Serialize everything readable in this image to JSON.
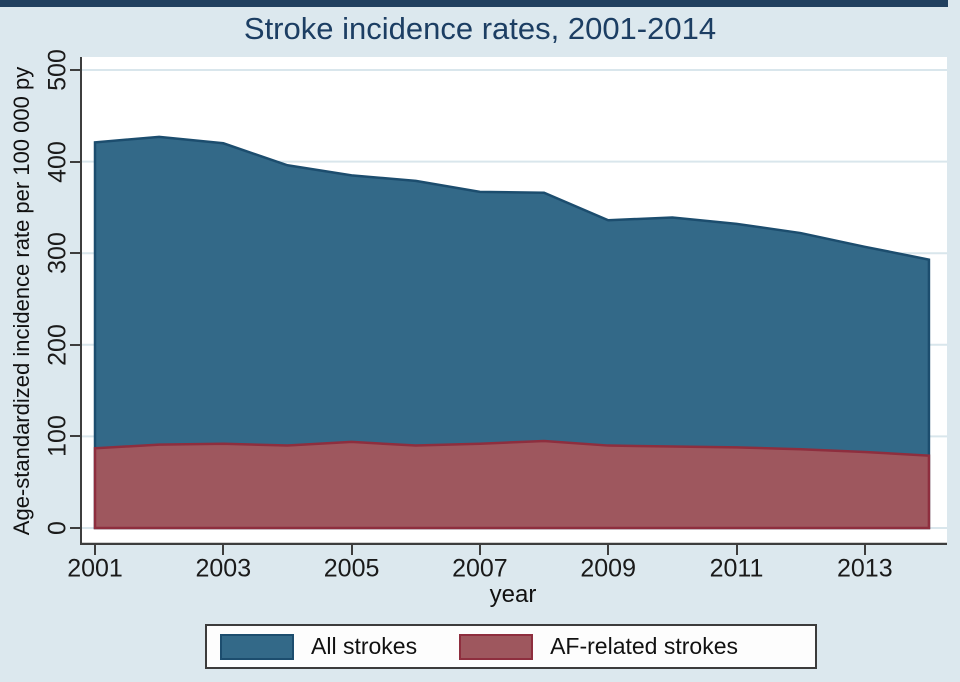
{
  "title": "Stroke incidence rates, 2001-2014",
  "y_axis": {
    "label": "Age-standardized incidence rate per 100 000 py",
    "ticks": [
      0,
      100,
      200,
      300,
      400,
      500
    ]
  },
  "x_axis": {
    "label": "year",
    "ticks": [
      2001,
      2003,
      2005,
      2007,
      2009,
      2011,
      2013
    ]
  },
  "legend": {
    "items": [
      {
        "label": "All strokes",
        "fill": "#336988",
        "edge": "#1c4d6e"
      },
      {
        "label": "AF-related strokes",
        "fill": "#9e575e",
        "edge": "#8e2e3e"
      }
    ]
  },
  "colors": {
    "background": "#dce8ee",
    "plot_background": "#ffffff",
    "top_bar": "#21405f",
    "title": "#1c3e63",
    "gridline": "#d9e6ec",
    "axis_line": "#3d3d3d",
    "tick_text": "#1a1a1a"
  },
  "chart_data": {
    "type": "area",
    "mode": "overlay",
    "title": "Stroke incidence rates, 2001-2014",
    "xlabel": "year",
    "ylabel": "Age-standardized incidence rate per 100 000 py",
    "x": [
      2001,
      2002,
      2003,
      2004,
      2005,
      2006,
      2007,
      2008,
      2009,
      2010,
      2011,
      2012,
      2013,
      2014
    ],
    "series": [
      {
        "name": "All strokes",
        "values": [
          421,
          427,
          420,
          396,
          385,
          379,
          367,
          366,
          336,
          339,
          332,
          322,
          307,
          293
        ],
        "fill": "#336988",
        "edge": "#1c4d6e"
      },
      {
        "name": "AF-related strokes",
        "values": [
          87,
          91,
          92,
          90,
          94,
          90,
          92,
          95,
          90,
          89,
          88,
          86,
          83,
          79
        ],
        "fill": "#9e575e",
        "edge": "#8e2e3e"
      }
    ],
    "xlim": [
      2001,
      2014
    ],
    "ylim": [
      0,
      500
    ],
    "grid": true,
    "legend_position": "bottom"
  }
}
